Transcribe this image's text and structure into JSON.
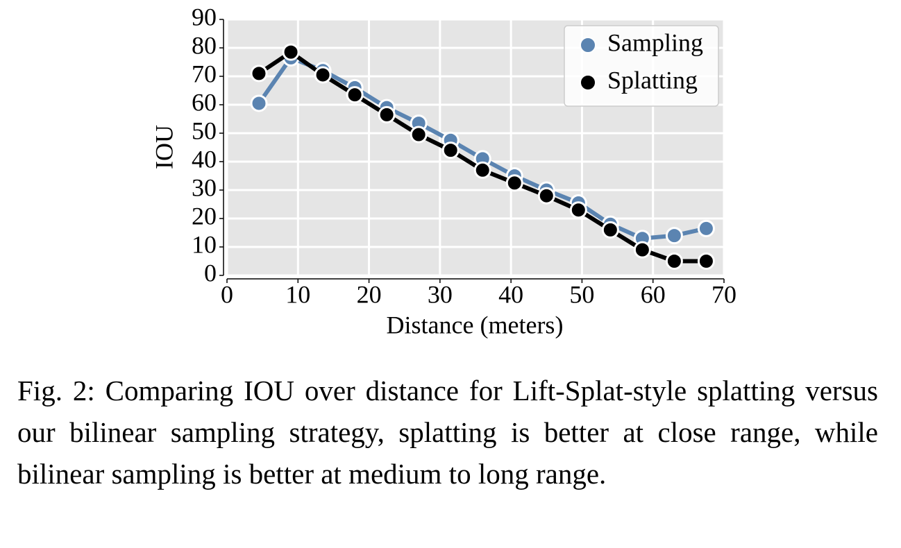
{
  "chart_data": {
    "type": "line",
    "x": [
      4.5,
      9,
      13.5,
      18,
      22.5,
      27,
      31.5,
      36,
      40.5,
      45,
      49.5,
      54,
      58.5,
      63,
      67.5
    ],
    "series": [
      {
        "name": "Sampling",
        "color": "#5b84b1",
        "values": [
          60.5,
          76.5,
          72,
          66,
          59,
          53.5,
          47.5,
          41,
          35,
          30,
          25.5,
          18,
          13,
          14,
          16.5
        ]
      },
      {
        "name": "Splatting",
        "color": "#000000",
        "values": [
          71,
          78.5,
          70.5,
          63.5,
          56.5,
          49.5,
          44,
          37,
          32.5,
          28,
          23,
          16,
          9,
          5,
          5
        ]
      }
    ],
    "xlabel": "Distance (meters)",
    "ylabel": "IOU",
    "xlim": [
      0,
      70
    ],
    "xticks": [
      0,
      10,
      20,
      30,
      40,
      50,
      60,
      70
    ],
    "ylim": [
      0,
      90
    ],
    "yticks": [
      0,
      10,
      20,
      30,
      40,
      50,
      60,
      70,
      80,
      90
    ],
    "grid": true,
    "legend": "upper right"
  },
  "caption": "Fig. 2: Comparing IOU over distance for Lift-Splat-style splatting versus our bilinear sampling strategy, splatting is better at close range, while bilinear sampling is better at medium to long range."
}
